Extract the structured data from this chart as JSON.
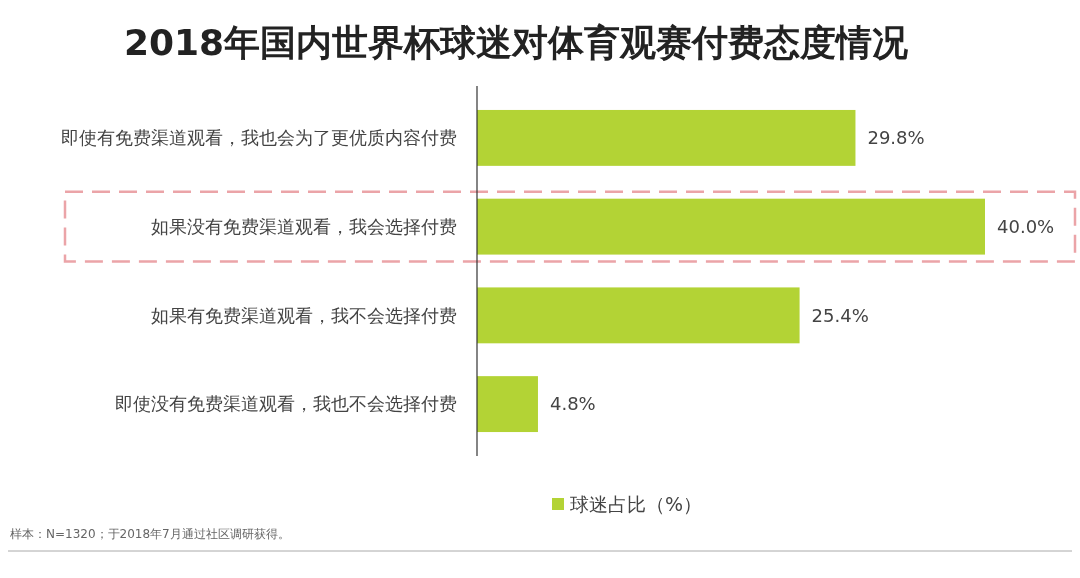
{
  "chart_data": {
    "type": "bar",
    "orientation": "horizontal",
    "title": "2018年国内世界杯球迷对体育观赛付费态度情况",
    "categories": [
      "即使有免费渠道观看，我也会为了更优质内容付费",
      "如果没有免费渠道观看，我会选择付费",
      "如果有免费渠道观看，我不会选择付费",
      "即使没有免费渠道观看，我也不会选择付费"
    ],
    "series": [
      {
        "name": "球迷占比（%）",
        "color": "#b3d335",
        "values": [
          29.8,
          40.0,
          25.4,
          4.8
        ],
        "value_labels": [
          "29.8%",
          "40.0%",
          "25.4%",
          "4.8%"
        ]
      }
    ],
    "legend": "bottom",
    "annotations": [
      "样本：N=1320；于2018年7月通过社区调研获得。"
    ]
  }
}
